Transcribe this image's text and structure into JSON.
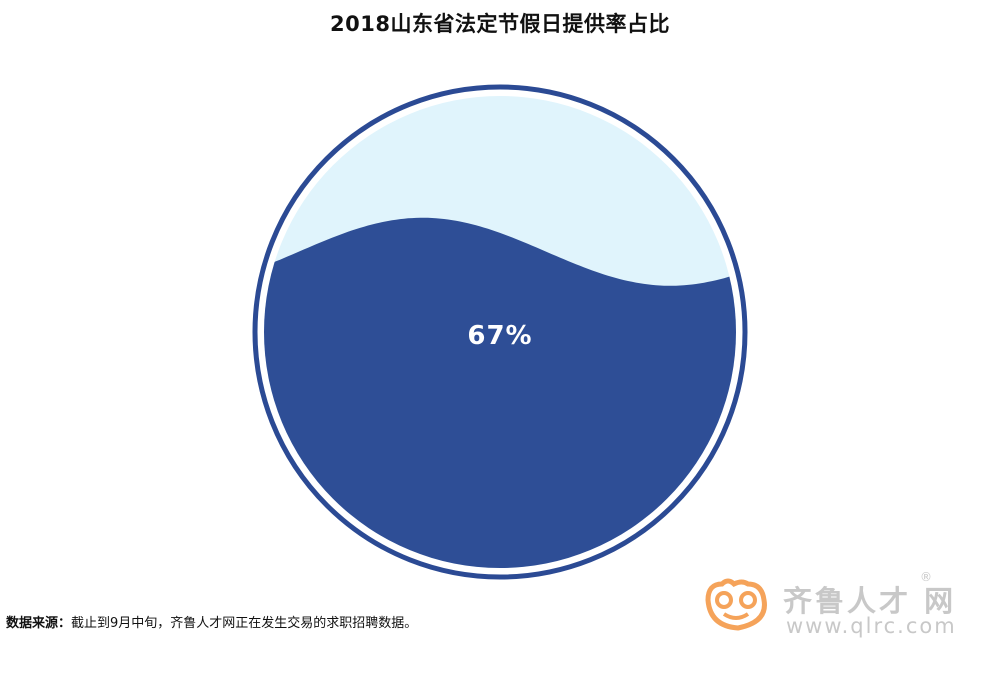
{
  "chart_data": {
    "type": "liquid-fill gauge",
    "title": "2018山东省法定节假日提供率占比",
    "value": 67,
    "value_label": "67%",
    "colors": {
      "fill": "#2E4E96",
      "background": "#E0F4FC",
      "outline": "#2B4A94"
    }
  },
  "footer": {
    "source_label": "数据来源：",
    "source_text": "截止到9月中旬，齐鲁人才网正在发生交易的求职招聘数据。"
  },
  "logo": {
    "name": "齐鲁人才 网",
    "registered": "®",
    "url": "www.qlrc.com",
    "color": "#F5A35A"
  }
}
